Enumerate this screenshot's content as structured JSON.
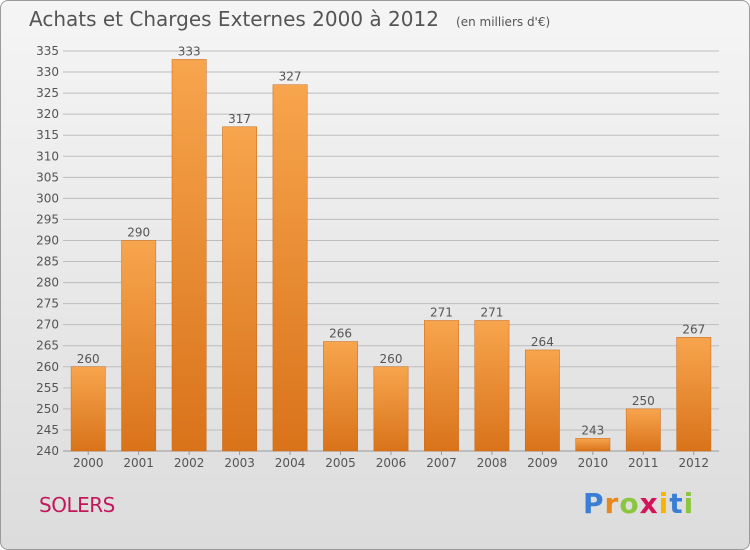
{
  "title": "Achats et Charges Externes 2000 à 2012",
  "subtitle": "(en milliers d'€)",
  "city": "SOLERS",
  "logo": {
    "letters": [
      "P",
      "r",
      "o",
      "x",
      "i",
      "t",
      "i"
    ],
    "colors": [
      "#3a7fd5",
      "#e8881a",
      "#8cc63f",
      "#d4145a",
      "#f7b500",
      "#3a7fd5",
      "#8cc63f"
    ]
  },
  "colors": {
    "bar_top": "#f7a54e",
    "bar_bottom": "#d9731a",
    "grid": "#bdbdbd",
    "text": "#555555"
  },
  "chart_data": {
    "type": "bar",
    "categories": [
      "2000",
      "2001",
      "2002",
      "2003",
      "2004",
      "2005",
      "2006",
      "2007",
      "2008",
      "2009",
      "2010",
      "2011",
      "2012"
    ],
    "values": [
      260,
      290,
      333,
      317,
      327,
      266,
      260,
      271,
      271,
      264,
      243,
      250,
      267
    ],
    "ylim": [
      240,
      335
    ],
    "ytick_step": 5,
    "grid": true,
    "data_labels": true
  }
}
